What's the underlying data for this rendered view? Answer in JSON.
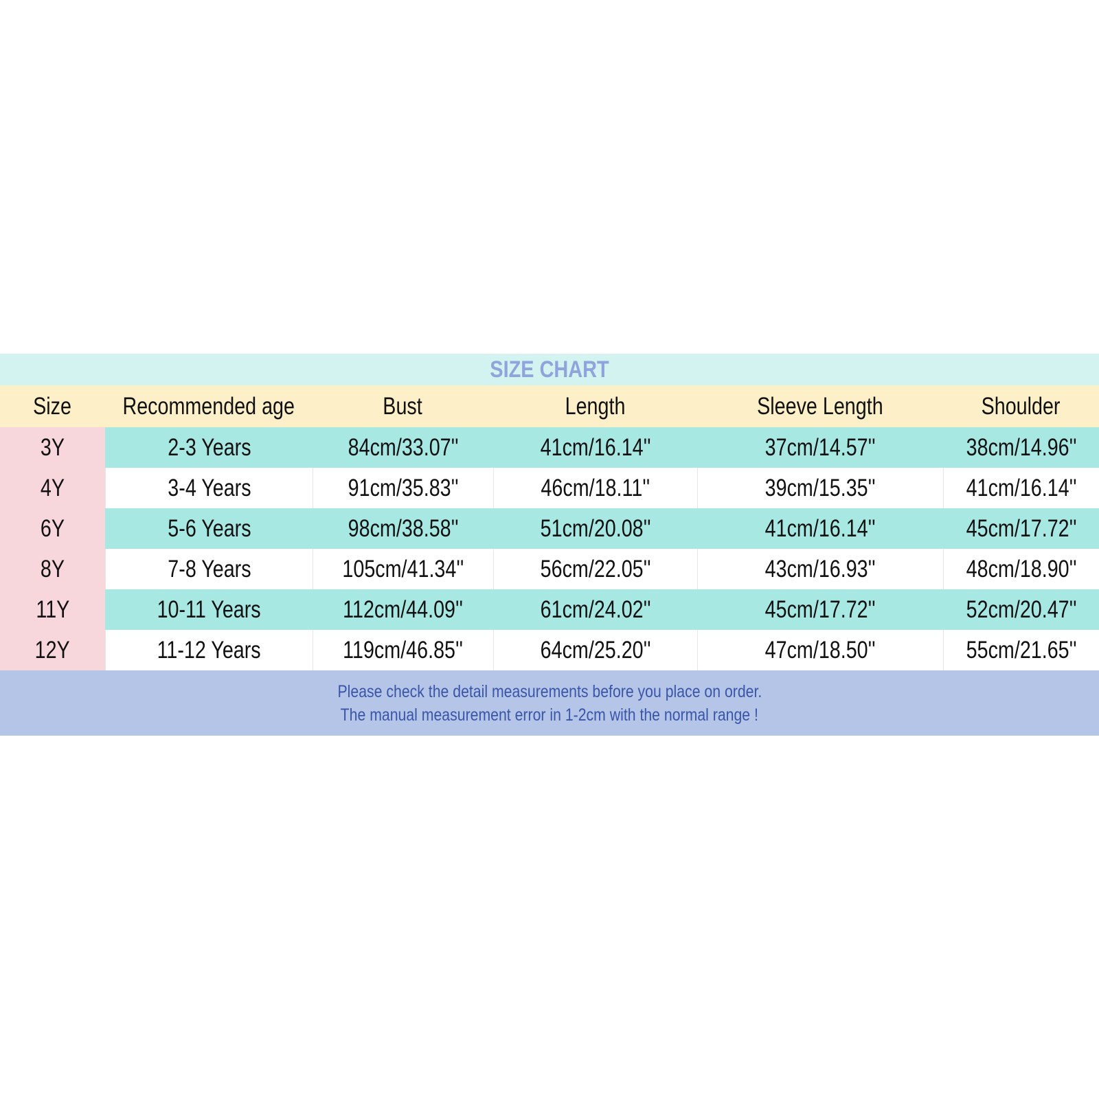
{
  "title": "SIZE CHART",
  "headers": [
    "Size",
    "Recommended age",
    "Bust",
    "Length",
    "Sleeve Length",
    "Shoulder"
  ],
  "rows": [
    [
      "3Y",
      "2-3 Years",
      "84cm/33.07''",
      "41cm/16.14''",
      "37cm/14.57''",
      "38cm/14.96''"
    ],
    [
      "4Y",
      "3-4 Years",
      "91cm/35.83''",
      "46cm/18.11''",
      "39cm/15.35''",
      "41cm/16.14''"
    ],
    [
      "6Y",
      "5-6 Years",
      "98cm/38.58''",
      "51cm/20.08''",
      "41cm/16.14''",
      "45cm/17.72''"
    ],
    [
      "8Y",
      "7-8 Years",
      "105cm/41.34''",
      "56cm/22.05''",
      "43cm/16.93''",
      "48cm/18.90''"
    ],
    [
      "11Y",
      "10-11 Years",
      "112cm/44.09''",
      "61cm/24.02''",
      "45cm/17.72''",
      "52cm/20.47''"
    ],
    [
      "12Y",
      "11-12 Years",
      "119cm/46.85''",
      "64cm/25.20''",
      "47cm/18.50''",
      "55cm/21.65''"
    ]
  ],
  "notes": [
    "Please check the detail measurements before you place on order.",
    "The manual measurement error in 1-2cm with the normal range !"
  ],
  "colors": {
    "title_bg": "#d3f3f0",
    "title_text": "#8fa3dc",
    "header_bg": "#fdf0c8",
    "size_col_bg": "#f7d7dc",
    "stripe": "#a8e8e3",
    "footer_bg": "#b5c5e8",
    "footer_text": "#3a55a8"
  }
}
